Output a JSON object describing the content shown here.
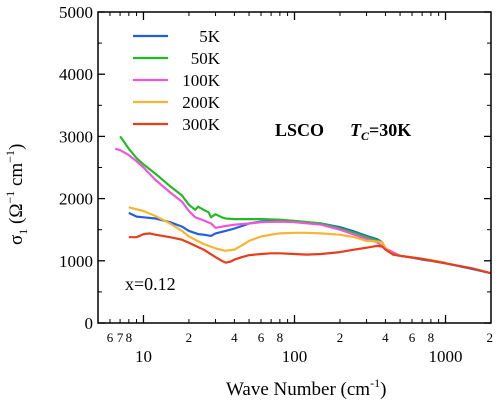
{
  "chart_data": {
    "type": "line",
    "xscale": "log",
    "xlim": [
      5,
      2000
    ],
    "ylim": [
      0,
      5000
    ],
    "xlabel_main": "Wave Number (cm",
    "xlabel_sup": "-1",
    "xlabel_close": ")",
    "ylabel": {
      "sigma": "σ",
      "sub": "1",
      "open": " (Ω",
      "sup1": "−1",
      "mid": " cm",
      "sup2": "−1",
      "close": ")"
    },
    "yticks": [
      0,
      1000,
      2000,
      3000,
      4000,
      5000
    ],
    "x_major_ticks": [
      10,
      100,
      1000
    ],
    "x_major_labels": [
      "10",
      "100",
      "1000"
    ],
    "x_minor_labeled": [
      {
        "x": 6,
        "label": "6"
      },
      {
        "x": 7,
        "label": "7"
      },
      {
        "x": 8,
        "label": "8"
      },
      {
        "x": 20,
        "label": "2"
      },
      {
        "x": 40,
        "label": "4"
      },
      {
        "x": 60,
        "label": "6"
      },
      {
        "x": 80,
        "label": "8"
      },
      {
        "x": 200,
        "label": "2"
      },
      {
        "x": 400,
        "label": "4"
      },
      {
        "x": 600,
        "label": "6"
      },
      {
        "x": 800,
        "label": "8"
      },
      {
        "x": 2000,
        "label": "2"
      }
    ],
    "legend_position": "top-left",
    "annotations": {
      "compound": "LSCO",
      "tc_symbol": "T",
      "tc_sub": "C",
      "tc_value": "=30K",
      "doping": "x=0.12"
    },
    "series": [
      {
        "name": "5K",
        "color": "#1f5fe0",
        "x": [
          8,
          9,
          10,
          12,
          15,
          18,
          20,
          23,
          25,
          28,
          30,
          35,
          40,
          45,
          50,
          60,
          70,
          80,
          100,
          120,
          150,
          200,
          250,
          300,
          350,
          380,
          400,
          450,
          500,
          600,
          700,
          800,
          1000,
          1200,
          1500,
          2000
        ],
        "y": [
          1770,
          1710,
          1700,
          1680,
          1620,
          1550,
          1480,
          1430,
          1420,
          1400,
          1440,
          1480,
          1520,
          1560,
          1600,
          1630,
          1640,
          1650,
          1640,
          1620,
          1600,
          1540,
          1470,
          1400,
          1350,
          1300,
          1200,
          1100,
          1080,
          1050,
          1020,
          1000,
          960,
          920,
          870,
          800
        ]
      },
      {
        "name": "50K",
        "color": "#22bb22",
        "x": [
          7,
          7.5,
          8,
          9,
          10,
          12,
          15,
          18,
          20,
          22,
          23,
          25,
          27,
          28,
          30,
          33,
          35,
          40,
          50,
          60,
          80,
          100,
          150,
          200,
          250,
          300,
          350,
          380,
          400,
          450,
          500,
          700,
          1000
        ],
        "y": [
          3000,
          2900,
          2800,
          2650,
          2550,
          2400,
          2200,
          2050,
          1900,
          1820,
          1870,
          1820,
          1780,
          1700,
          1750,
          1700,
          1680,
          1670,
          1670,
          1670,
          1660,
          1640,
          1600,
          1520,
          1450,
          1380,
          1330,
          1300,
          1200,
          1100,
          1080,
          1030,
          970
        ]
      },
      {
        "name": "100K",
        "color": "#ee55dd",
        "x": [
          6.5,
          7,
          8,
          9,
          10,
          12,
          15,
          18,
          20,
          22,
          25,
          28,
          30,
          35,
          40,
          50,
          60,
          80,
          100,
          150,
          200,
          250,
          300,
          350,
          400,
          500,
          700,
          1000
        ],
        "y": [
          2800,
          2780,
          2700,
          2600,
          2500,
          2300,
          2100,
          1950,
          1800,
          1700,
          1650,
          1600,
          1530,
          1560,
          1580,
          1600,
          1620,
          1630,
          1620,
          1580,
          1500,
          1420,
          1350,
          1300,
          1200,
          1080,
          1030,
          970
        ]
      },
      {
        "name": "200K",
        "color": "#f7b532",
        "x": [
          8,
          10,
          12,
          15,
          18,
          20,
          25,
          30,
          35,
          40,
          45,
          50,
          60,
          70,
          80,
          100,
          120,
          150,
          200,
          250,
          300,
          350,
          380,
          400,
          450,
          500,
          700,
          1000
        ],
        "y": [
          1860,
          1800,
          1720,
          1600,
          1480,
          1390,
          1270,
          1200,
          1160,
          1180,
          1250,
          1320,
          1390,
          1420,
          1440,
          1450,
          1450,
          1440,
          1420,
          1380,
          1320,
          1310,
          1300,
          1200,
          1100,
          1080,
          1030,
          970
        ]
      },
      {
        "name": "300K",
        "color": "#e83c1a",
        "x": [
          8,
          9,
          10,
          11,
          12,
          15,
          18,
          20,
          25,
          30,
          33,
          35,
          38,
          40,
          45,
          50,
          60,
          70,
          80,
          100,
          120,
          150,
          200,
          250,
          300,
          350,
          380,
          400,
          450,
          500,
          700,
          1000,
          1500,
          2000
        ],
        "y": [
          1380,
          1380,
          1430,
          1440,
          1420,
          1380,
          1340,
          1290,
          1180,
          1060,
          1000,
          970,
          990,
          1020,
          1060,
          1090,
          1110,
          1120,
          1120,
          1110,
          1100,
          1110,
          1140,
          1180,
          1210,
          1240,
          1230,
          1180,
          1100,
          1080,
          1030,
          960,
          880,
          800
        ]
      }
    ]
  }
}
